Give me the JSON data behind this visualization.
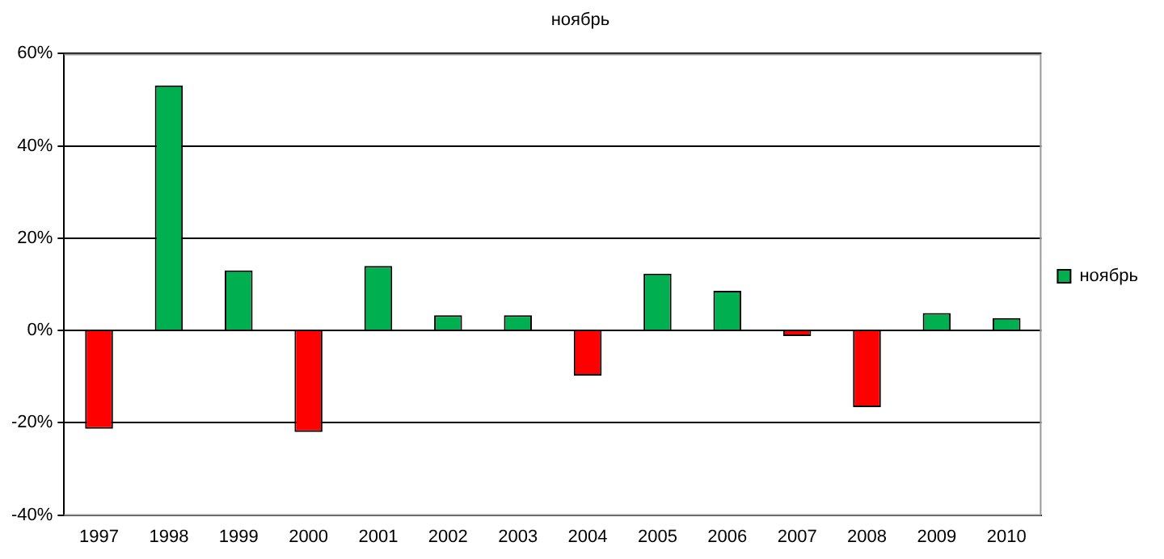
{
  "chart_data": {
    "type": "bar",
    "title": "ноябрь",
    "categories": [
      "1997",
      "1998",
      "1999",
      "2000",
      "2001",
      "2002",
      "2003",
      "2004",
      "2005",
      "2006",
      "2007",
      "2008",
      "2009",
      "2010"
    ],
    "series": [
      {
        "name": "ноябрь",
        "color": "#00b050",
        "colors": [
          "#ff0000",
          "#00b050",
          "#00b050",
          "#ff0000",
          "#00b050",
          "#00b050",
          "#00b050",
          "#ff0000",
          "#00b050",
          "#00b050",
          "#ff0000",
          "#ff0000",
          "#00b050",
          "#00b050"
        ],
        "values": [
          -21.3,
          53.1,
          13.0,
          -22.0,
          14.0,
          3.3,
          3.3,
          -9.8,
          12.3,
          8.6,
          -1.2,
          -16.6,
          3.8,
          2.7
        ]
      }
    ],
    "ylim": [
      -40,
      60
    ],
    "yticks": [
      {
        "value": -40,
        "label": "-40%"
      },
      {
        "value": -20,
        "label": "-20%"
      },
      {
        "value": 0,
        "label": "0%"
      },
      {
        "value": 20,
        "label": "20%"
      },
      {
        "value": 40,
        "label": "40%"
      },
      {
        "value": 60,
        "label": "60%"
      }
    ],
    "grid": "y",
    "legend": "right"
  }
}
